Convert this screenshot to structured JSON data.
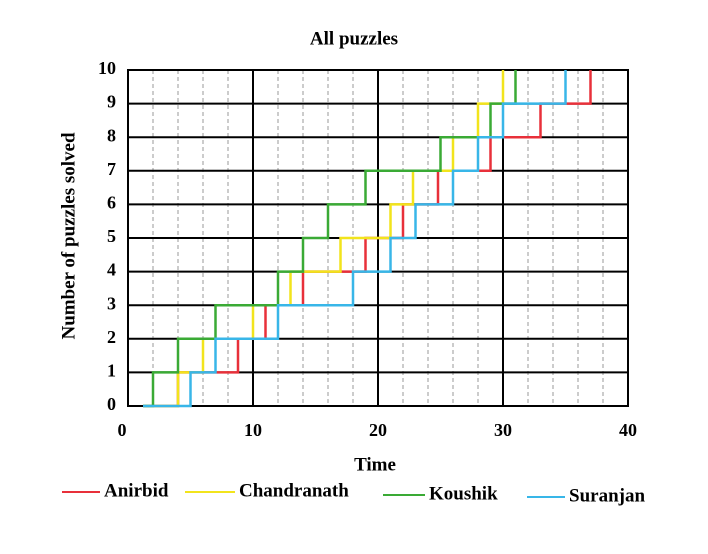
{
  "chart_data": {
    "type": "step",
    "title": "All puzzles",
    "x_label": "Time",
    "y_label": "Number of puzzles solved",
    "xlim": [
      0,
      40
    ],
    "ylim": [
      0,
      10
    ],
    "xticks": [
      0,
      10,
      20,
      30,
      40
    ],
    "yticks": [
      0,
      1,
      2,
      3,
      4,
      5,
      6,
      7,
      8,
      9,
      10
    ],
    "x_minor_ticks": [
      2,
      4,
      6,
      8,
      12,
      14,
      16,
      18,
      22,
      24,
      26,
      28,
      32,
      34,
      36,
      38
    ],
    "grid": true,
    "series": [
      {
        "name": "Anirbid",
        "color": "#e8303a",
        "x": [
          1.2,
          4.0,
          8.8,
          11.0,
          14.0,
          19.0,
          22.0,
          24.8,
          29.0,
          33.0,
          37.0
        ],
        "values": [
          0,
          1,
          2,
          3,
          4,
          5,
          6,
          7,
          8,
          9,
          10
        ]
      },
      {
        "name": "Chandranath",
        "color": "#f2e41c",
        "x": [
          1.2,
          4.0,
          6.0,
          10.0,
          13.0,
          17.0,
          21.0,
          22.8,
          26.0,
          28.0,
          30.0
        ],
        "values": [
          0,
          1,
          2,
          3,
          4,
          5,
          6,
          7,
          8,
          9,
          10
        ]
      },
      {
        "name": "Koushik",
        "color": "#3aaa35",
        "x": [
          1.2,
          2.0,
          4.0,
          7.0,
          12.0,
          14.0,
          16.0,
          19.0,
          25.0,
          29.0,
          31.0
        ],
        "values": [
          0,
          1,
          2,
          3,
          4,
          5,
          6,
          7,
          8,
          9,
          10
        ]
      },
      {
        "name": "Suranjan",
        "color": "#38b6e8",
        "x": [
          1.2,
          5.0,
          7.0,
          12.0,
          18.0,
          21.0,
          23.0,
          26.0,
          28.0,
          30.0,
          35.0
        ],
        "values": [
          0,
          1,
          2,
          3,
          4,
          5,
          6,
          7,
          8,
          9,
          10
        ]
      }
    ]
  }
}
